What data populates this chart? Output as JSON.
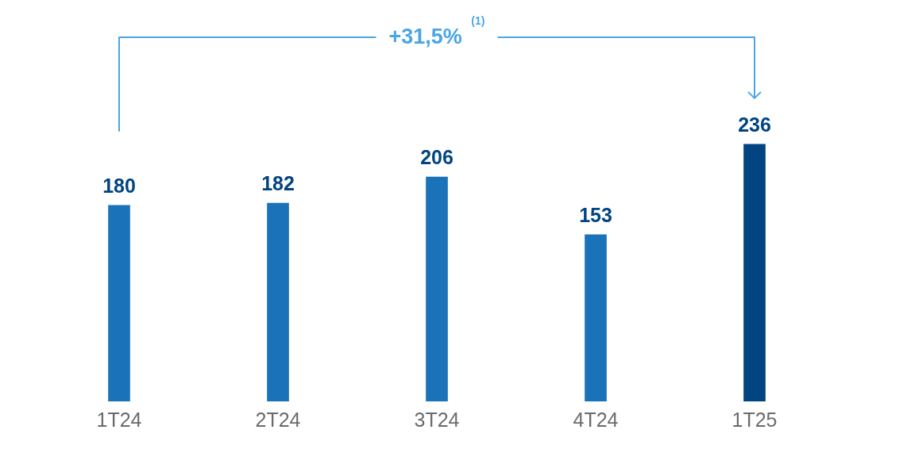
{
  "chart_data": {
    "type": "bar",
    "categories": [
      "1T24",
      "2T24",
      "3T24",
      "4T24",
      "1T25"
    ],
    "values": [
      180,
      182,
      206,
      153,
      236
    ],
    "colors": [
      "#1a73b8",
      "#1a73b8",
      "#1a73b8",
      "#1a73b8",
      "#004481"
    ],
    "data_labels": true,
    "tick_labels": "x",
    "annotations": [
      "+31,5% $^{(1)}$"
    ]
  }
}
